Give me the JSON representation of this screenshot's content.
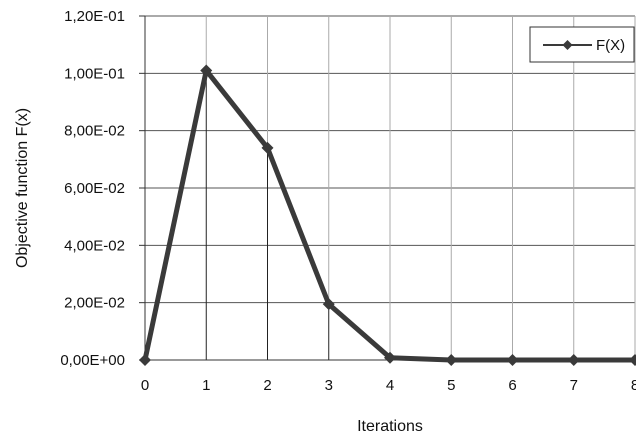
{
  "chart_data": {
    "type": "line",
    "title": "",
    "xlabel": "Iterations",
    "ylabel": "Objective function F(x)",
    "x": [
      0,
      1,
      2,
      3,
      4,
      5,
      6,
      7,
      8
    ],
    "x_tick_labels": [
      "0",
      "1",
      "2",
      "3",
      "4",
      "5",
      "6",
      "7",
      "8"
    ],
    "xlim": [
      0,
      8
    ],
    "ylim": [
      0,
      0.12
    ],
    "y_tick_values": [
      0,
      0.02,
      0.04,
      0.06,
      0.08,
      0.1,
      0.12
    ],
    "y_tick_labels": [
      "0,00E+00",
      "2,00E-02",
      "4,00E-02",
      "6,00E-02",
      "8,00E-02",
      "1,00E-01",
      "1,20E-01"
    ],
    "grid": true,
    "legend_position": "top-right",
    "series": [
      {
        "name": "F(X)",
        "color": "#3a3a3a",
        "marker": "diamond",
        "values": [
          0,
          0.101,
          0.074,
          0.0195,
          0.0008,
          0,
          0,
          0,
          0
        ]
      }
    ]
  }
}
